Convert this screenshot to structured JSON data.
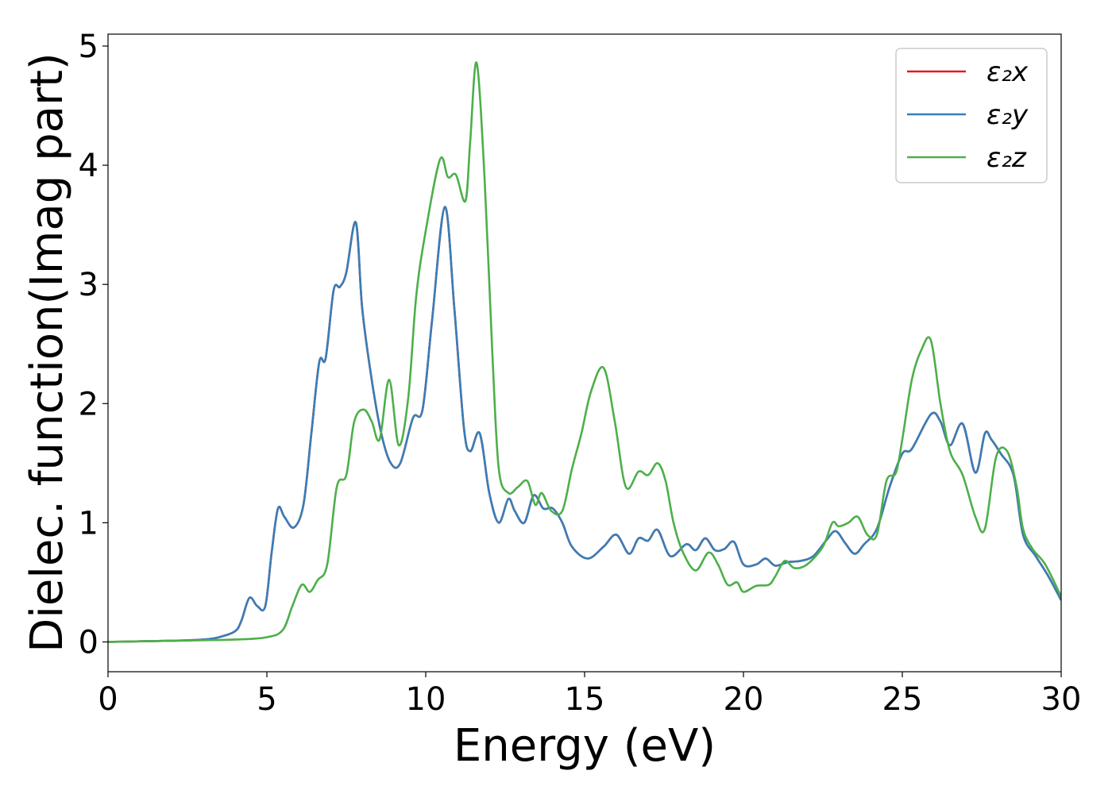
{
  "chart_data": {
    "type": "line",
    "title": "",
    "xlabel": "Energy (eV)",
    "ylabel": "Dielec. function(Imag part)",
    "xlim": [
      0,
      30
    ],
    "ylim": [
      -0.25,
      5.1
    ],
    "xticks": [
      0,
      5,
      10,
      15,
      20,
      25,
      30
    ],
    "yticks": [
      0,
      1,
      2,
      3,
      4,
      5
    ],
    "grid": false,
    "legend_position": "top-right",
    "series": [
      {
        "name": "ε₂x",
        "color": "#e41a1c",
        "x": [
          0,
          1,
          2,
          3,
          3.5,
          4,
          4.2,
          4.45,
          4.7,
          4.95,
          5.15,
          5.35,
          5.55,
          5.85,
          6.15,
          6.4,
          6.65,
          6.85,
          7.1,
          7.3,
          7.5,
          7.8,
          8,
          8.3,
          8.6,
          8.9,
          9.2,
          9.6,
          9.9,
          10.2,
          10.6,
          10.9,
          11.2,
          11.4,
          11.7,
          12,
          12.3,
          12.6,
          12.8,
          13.1,
          13.4,
          13.7,
          14,
          14.3,
          14.6,
          15.1,
          15.6,
          16,
          16.4,
          16.7,
          17,
          17.3,
          17.7,
          18.2,
          18.5,
          18.8,
          19.1,
          19.4,
          19.7,
          20,
          20.4,
          20.7,
          21,
          21.4,
          21.8,
          22.2,
          22.6,
          22.9,
          23.2,
          23.5,
          23.8,
          24.2,
          24.6,
          25,
          25.3,
          25.9,
          26.2,
          26.5,
          26.9,
          27.3,
          27.6,
          27.8,
          28.1,
          28.5,
          28.8,
          29.2,
          29.6,
          30
        ],
        "values": [
          0,
          0.005,
          0.01,
          0.02,
          0.04,
          0.09,
          0.18,
          0.37,
          0.3,
          0.3,
          0.75,
          1.12,
          1.05,
          0.96,
          1.15,
          1.75,
          2.35,
          2.38,
          2.95,
          2.98,
          3.1,
          3.52,
          2.8,
          2.2,
          1.75,
          1.5,
          1.5,
          1.88,
          1.95,
          2.7,
          3.65,
          2.8,
          1.8,
          1.6,
          1.75,
          1.25,
          1.0,
          1.2,
          1.1,
          1.0,
          1.23,
          1.12,
          1.12,
          1.0,
          0.8,
          0.7,
          0.8,
          0.9,
          0.74,
          0.87,
          0.85,
          0.94,
          0.72,
          0.82,
          0.77,
          0.87,
          0.77,
          0.78,
          0.84,
          0.65,
          0.65,
          0.7,
          0.64,
          0.67,
          0.68,
          0.72,
          0.85,
          0.93,
          0.83,
          0.74,
          0.82,
          0.95,
          1.3,
          1.58,
          1.62,
          1.91,
          1.85,
          1.65,
          1.83,
          1.42,
          1.75,
          1.7,
          1.58,
          1.4,
          0.9,
          0.72,
          0.55,
          0.35
        ]
      },
      {
        "name": "ε₂y",
        "color": "#377eb8",
        "x": [
          0,
          1,
          2,
          3,
          3.5,
          4,
          4.2,
          4.45,
          4.7,
          4.95,
          5.15,
          5.35,
          5.55,
          5.85,
          6.15,
          6.4,
          6.65,
          6.85,
          7.1,
          7.3,
          7.5,
          7.8,
          8,
          8.3,
          8.6,
          8.9,
          9.2,
          9.6,
          9.9,
          10.2,
          10.6,
          10.9,
          11.2,
          11.4,
          11.7,
          12,
          12.3,
          12.6,
          12.8,
          13.1,
          13.4,
          13.7,
          14,
          14.3,
          14.6,
          15.1,
          15.6,
          16,
          16.4,
          16.7,
          17,
          17.3,
          17.7,
          18.2,
          18.5,
          18.8,
          19.1,
          19.4,
          19.7,
          20,
          20.4,
          20.7,
          21,
          21.4,
          21.8,
          22.2,
          22.6,
          22.9,
          23.2,
          23.5,
          23.8,
          24.2,
          24.6,
          25,
          25.3,
          25.9,
          26.2,
          26.5,
          26.9,
          27.3,
          27.6,
          27.8,
          28.1,
          28.5,
          28.8,
          29.2,
          29.6,
          30
        ],
        "values": [
          0,
          0.005,
          0.01,
          0.02,
          0.04,
          0.09,
          0.18,
          0.37,
          0.3,
          0.3,
          0.75,
          1.12,
          1.05,
          0.96,
          1.15,
          1.75,
          2.35,
          2.38,
          2.95,
          2.98,
          3.1,
          3.52,
          2.8,
          2.2,
          1.75,
          1.5,
          1.5,
          1.88,
          1.95,
          2.7,
          3.65,
          2.8,
          1.8,
          1.6,
          1.75,
          1.25,
          1.0,
          1.2,
          1.1,
          1.0,
          1.23,
          1.12,
          1.12,
          1.0,
          0.8,
          0.7,
          0.8,
          0.9,
          0.74,
          0.87,
          0.85,
          0.94,
          0.72,
          0.82,
          0.77,
          0.87,
          0.77,
          0.78,
          0.84,
          0.65,
          0.65,
          0.7,
          0.64,
          0.67,
          0.68,
          0.72,
          0.85,
          0.93,
          0.83,
          0.74,
          0.82,
          0.95,
          1.3,
          1.58,
          1.62,
          1.91,
          1.85,
          1.65,
          1.83,
          1.42,
          1.75,
          1.7,
          1.58,
          1.4,
          0.9,
          0.72,
          0.55,
          0.35
        ]
      },
      {
        "name": "ε₂z",
        "color": "#4daf4a",
        "x": [
          0,
          2,
          4,
          5,
          5.5,
          5.8,
          6.1,
          6.35,
          6.6,
          6.9,
          7.2,
          7.5,
          7.75,
          8.05,
          8.3,
          8.55,
          8.85,
          9.15,
          9.45,
          9.7,
          10,
          10.45,
          10.7,
          10.95,
          11.25,
          11.4,
          11.6,
          11.85,
          12.1,
          12.3,
          12.6,
          12.9,
          13.2,
          13.45,
          13.65,
          13.95,
          14.3,
          14.6,
          14.9,
          15.2,
          15.6,
          15.95,
          16.3,
          16.7,
          17,
          17.3,
          17.55,
          17.8,
          18.1,
          18.5,
          18.9,
          19.2,
          19.5,
          19.8,
          20,
          20.4,
          20.8,
          21,
          21.3,
          21.6,
          22,
          22.5,
          22.8,
          23,
          23.3,
          23.6,
          23.9,
          24.2,
          24.5,
          24.8,
          25,
          25.3,
          25.6,
          25.9,
          26.2,
          26.5,
          26.9,
          27.3,
          27.6,
          27.95,
          28.3,
          28.6,
          28.8,
          29.1,
          29.5,
          30
        ],
        "values": [
          0,
          0.01,
          0.02,
          0.04,
          0.1,
          0.3,
          0.48,
          0.42,
          0.52,
          0.65,
          1.3,
          1.4,
          1.85,
          1.95,
          1.85,
          1.7,
          2.2,
          1.65,
          2.05,
          2.9,
          3.45,
          4.05,
          3.9,
          3.92,
          3.7,
          4.2,
          4.86,
          3.9,
          2.4,
          1.45,
          1.25,
          1.3,
          1.35,
          1.15,
          1.25,
          1.1,
          1.1,
          1.45,
          1.75,
          2.1,
          2.3,
          1.85,
          1.3,
          1.43,
          1.4,
          1.5,
          1.35,
          1.0,
          0.75,
          0.6,
          0.75,
          0.65,
          0.48,
          0.5,
          0.42,
          0.47,
          0.48,
          0.55,
          0.68,
          0.62,
          0.65,
          0.8,
          1.0,
          0.97,
          1.0,
          1.05,
          0.9,
          0.9,
          1.35,
          1.42,
          1.7,
          2.2,
          2.45,
          2.53,
          2.0,
          1.6,
          1.4,
          1.05,
          0.95,
          1.55,
          1.6,
          1.3,
          0.95,
          0.78,
          0.65,
          0.38
        ]
      }
    ]
  }
}
